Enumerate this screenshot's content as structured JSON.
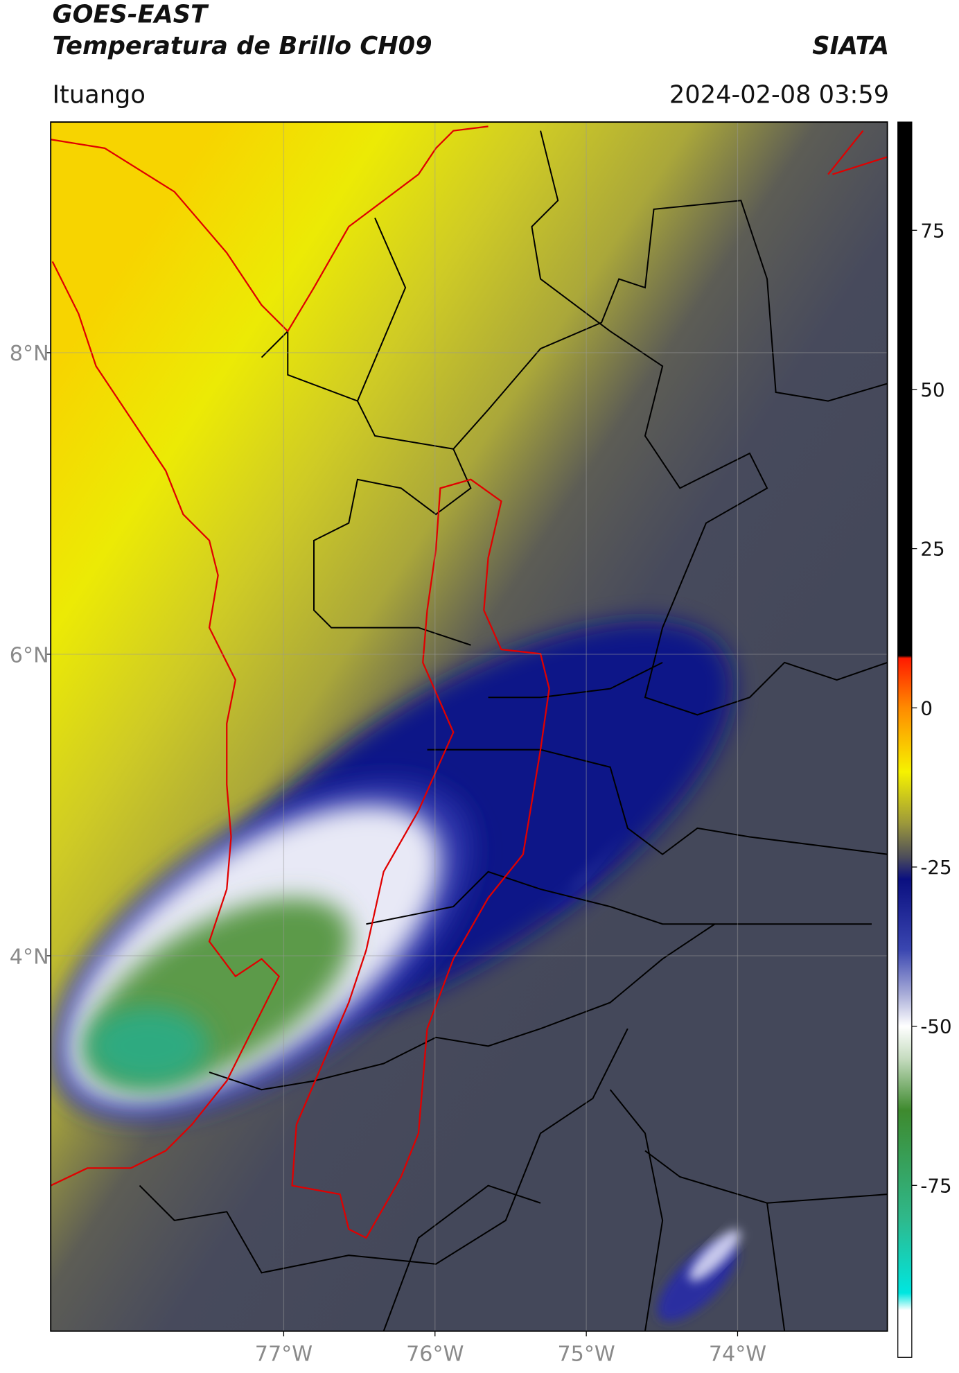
{
  "header": {
    "title": "GOES-EAST",
    "subtitle": "Temperatura de Brillo CH09",
    "agency": "SIATA",
    "location": "Ituango",
    "timestamp": "2024-02-08 03:59"
  },
  "map": {
    "lonlim": [
      -78.54,
      -73.01
    ],
    "latlim": [
      1.51,
      9.53
    ],
    "lon_ticks": [
      {
        "value": -77,
        "label": "77°W"
      },
      {
        "value": -76,
        "label": "76°W"
      },
      {
        "value": -75,
        "label": "75°W"
      },
      {
        "value": -74,
        "label": "74°W"
      }
    ],
    "lat_ticks": [
      {
        "value": 8,
        "label": "8°N"
      },
      {
        "value": 6,
        "label": "6°N"
      },
      {
        "value": 4,
        "label": "4°N"
      }
    ],
    "grid": true
  },
  "colorbar": {
    "lim": [
      -102,
      92
    ],
    "ticks": [
      75,
      50,
      25,
      0,
      -25,
      -50,
      -75
    ]
  }
}
